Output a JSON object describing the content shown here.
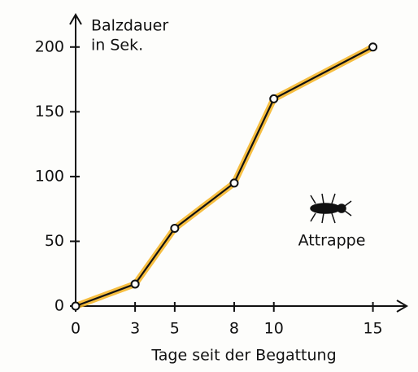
{
  "chart_data": {
    "type": "line",
    "y_label": [
      "Balzdauer",
      "in Sek."
    ],
    "x_label": "Tage seit der Begattung",
    "annotation": "Attrappe",
    "x": [
      0,
      3,
      5,
      8,
      10,
      15
    ],
    "series": [
      {
        "values": [
          0,
          17,
          60,
          95,
          160,
          200
        ],
        "color": "#111111",
        "highlight": "#f5b320"
      }
    ],
    "xlim": [
      0,
      16.7
    ],
    "ylim": [
      0,
      225
    ],
    "xticks": [
      0,
      3,
      5,
      8,
      10,
      15
    ],
    "yticks": [
      0,
      50,
      100,
      150,
      200
    ]
  }
}
